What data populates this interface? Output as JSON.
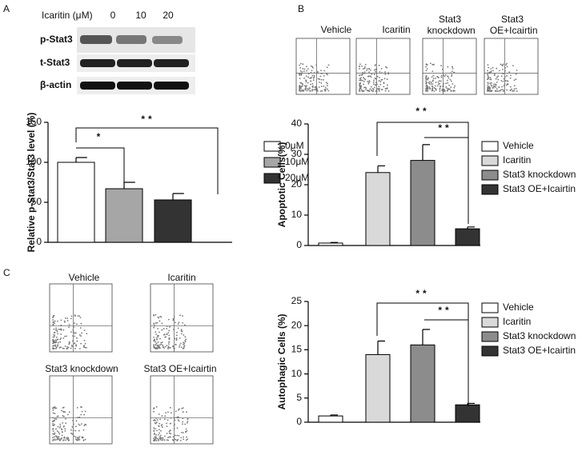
{
  "panel_labels": [
    "A",
    "B",
    "C"
  ],
  "blot": {
    "header": "Icaritin (μM)",
    "doses": [
      "0",
      "10",
      "20"
    ],
    "rows": [
      "p-Stat3",
      "t-Stat3",
      "β-actin"
    ]
  },
  "flow_b": {
    "titles": [
      "Vehicle",
      "Icaritin",
      "Stat3 knockdown",
      "Stat3 OE+Icairtin"
    ]
  },
  "flow_c": {
    "titles": [
      "Vehicle",
      "Icaritin",
      "Stat3 knockdown",
      "Stat3 OE+Icairtin"
    ]
  },
  "chart_data": [
    {
      "type": "bar",
      "y_label": "Relative p-Stat3/Stat3 level (%)",
      "categories": [
        null
      ],
      "ylim": [
        0,
        150
      ],
      "yticks": [
        0,
        50,
        100,
        150
      ],
      "annotations": [
        "*",
        "**"
      ],
      "series": [
        {
          "name": "0μM",
          "color": "#ffffff",
          "values": [
            100
          ],
          "errors": [
            6
          ]
        },
        {
          "name": "10μM",
          "color": "#a6a6a6",
          "values": [
            67
          ],
          "errors": [
            8
          ]
        },
        {
          "name": "20μM",
          "color": "#333333",
          "values": [
            53
          ],
          "errors": [
            8
          ]
        }
      ]
    },
    {
      "type": "bar",
      "y_label": "Apoptotic Cells(%)",
      "categories": [
        null
      ],
      "ylim": [
        0,
        40
      ],
      "yticks": [
        0,
        10,
        20,
        30,
        40
      ],
      "annotations": [
        "**",
        "**"
      ],
      "series": [
        {
          "name": "Vehicle",
          "color": "#ffffff",
          "values": [
            0.8
          ],
          "errors": [
            0.2
          ]
        },
        {
          "name": "Icaritin",
          "color": "#d9d9d9",
          "values": [
            24
          ],
          "errors": [
            2.2
          ]
        },
        {
          "name": "Stat3 knockdown",
          "color": "#8c8c8c",
          "values": [
            28
          ],
          "errors": [
            5.2
          ]
        },
        {
          "name": "Stat3 OE+Icairtin",
          "color": "#333333",
          "values": [
            5.5
          ],
          "errors": [
            0.6
          ]
        }
      ]
    },
    {
      "type": "bar",
      "y_label": "Autophagic Cells (%)",
      "categories": [
        null
      ],
      "ylim": [
        0,
        25
      ],
      "yticks": [
        0,
        5,
        10,
        15,
        20,
        25
      ],
      "annotations": [
        "**",
        "**"
      ],
      "series": [
        {
          "name": "Vehicle",
          "color": "#ffffff",
          "values": [
            1.3
          ],
          "errors": [
            0.2
          ]
        },
        {
          "name": "Icaritin",
          "color": "#d9d9d9",
          "values": [
            14
          ],
          "errors": [
            2.8
          ]
        },
        {
          "name": "Stat3 knockdown",
          "color": "#8c8c8c",
          "values": [
            16
          ],
          "errors": [
            3.2
          ]
        },
        {
          "name": "Stat3 OE+Icairtin",
          "color": "#333333",
          "values": [
            3.6
          ],
          "errors": [
            0.3
          ]
        }
      ]
    }
  ]
}
